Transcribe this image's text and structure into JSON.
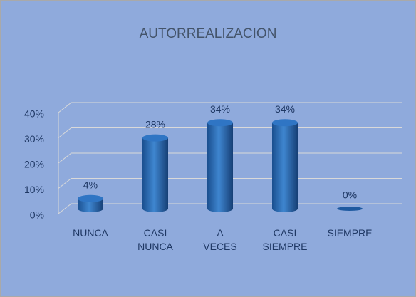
{
  "chart_data": {
    "type": "bar",
    "title": "AUTORREALIZACION",
    "categories": [
      "NUNCA",
      "CASI NUNCA",
      "A VECES",
      "CASI SIEMPRE",
      "SIEMPRE"
    ],
    "values": [
      4,
      28,
      34,
      34,
      0
    ],
    "value_labels": [
      "4%",
      "28%",
      "34%",
      "34%",
      "0%"
    ],
    "color": "#2e75b6",
    "ylim": [
      0,
      40
    ],
    "yticks": [
      {
        "value": 0,
        "label": "0%"
      },
      {
        "value": 10,
        "label": "10%"
      },
      {
        "value": 20,
        "label": "20%"
      },
      {
        "value": 30,
        "label": "30%"
      },
      {
        "value": 40,
        "label": "40%"
      }
    ],
    "grid": true
  }
}
